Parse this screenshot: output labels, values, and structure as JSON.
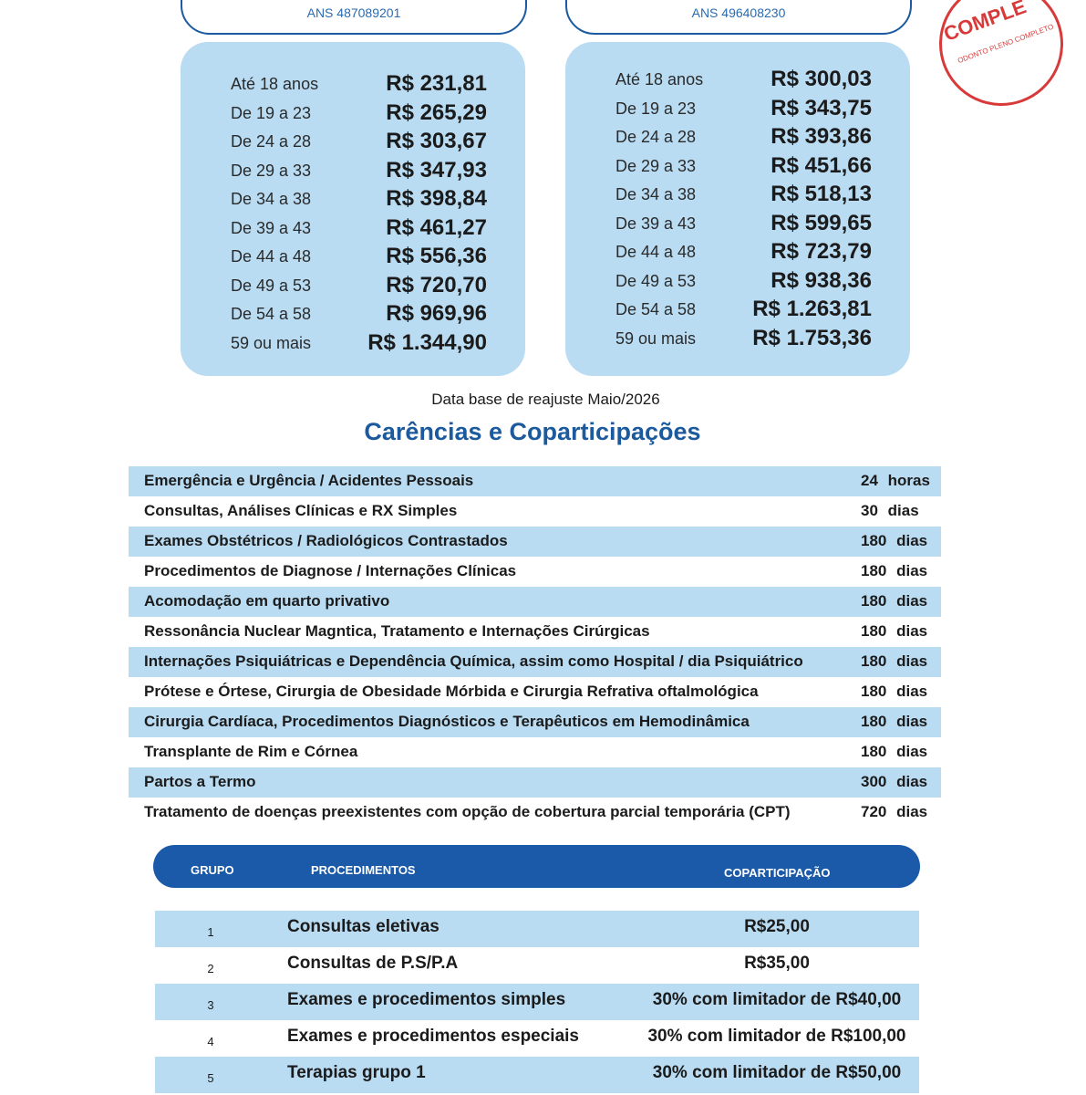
{
  "stamp": {
    "label": "COMPLE",
    "sub": "ODONTO PLENO COMPLETO"
  },
  "plans": [
    {
      "ans": "ANS 487089201",
      "prices": [
        [
          "Até 18 anos",
          "R$ 231,81"
        ],
        [
          "De 19 a 23",
          "R$ 265,29"
        ],
        [
          "De 24 a 28",
          "R$ 303,67"
        ],
        [
          "De 29 a 33",
          "R$ 347,93"
        ],
        [
          "De 34 a 38",
          "R$ 398,84"
        ],
        [
          "De 39 a 43",
          "R$ 461,27"
        ],
        [
          "De 44 a 48",
          "R$ 556,36"
        ],
        [
          "De 49 a 53",
          "R$ 720,70"
        ],
        [
          "De 54 a 58",
          "R$ 969,96"
        ],
        [
          "59 ou mais",
          "R$ 1.344,90"
        ]
      ]
    },
    {
      "ans": "ANS 496408230",
      "prices": [
        [
          "Até 18 anos",
          "R$ 300,03"
        ],
        [
          "De 19 a 23",
          "R$ 343,75"
        ],
        [
          "De 24 a 28",
          "R$ 393,86"
        ],
        [
          "De 29 a 33",
          "R$ 451,66"
        ],
        [
          "De 34 a 38",
          "R$ 518,13"
        ],
        [
          "De 39 a 43",
          "R$ 599,65"
        ],
        [
          "De 44 a 48",
          "R$ 723,79"
        ],
        [
          "De 49 a 53",
          "R$ 938,36"
        ],
        [
          "De 54 a 58",
          "R$ 1.263,81"
        ],
        [
          "59 ou mais",
          "R$ 1.753,36"
        ]
      ]
    }
  ],
  "note": "Data base de reajuste Maio/2026",
  "title": "Carências e Coparticipações",
  "carencias": [
    [
      "Emergência e Urgência / Acidentes Pessoais",
      "24 horas"
    ],
    [
      "Consultas, Análises Clínicas e RX Simples",
      "30 dias"
    ],
    [
      "Exames Obstétricos / Radiológicos Contrastados",
      "180 dias"
    ],
    [
      "Procedimentos de Diagnose / Internações Clínicas",
      "180 dias"
    ],
    [
      "Acomodação em quarto privativo",
      "180 dias"
    ],
    [
      "Ressonância Nuclear Magntica, Tratamento e Internações Cirúrgicas",
      "180 dias"
    ],
    [
      "Internações Psiquiátricas e Dependência Química, assim como Hospital / dia Psiquiátrico",
      "180 dias"
    ],
    [
      "Prótese e Órtese, Cirurgia de Obesidade Mórbida e Cirurgia Refrativa oftalmológica",
      "180 dias"
    ],
    [
      "Cirurgia Cardíaca, Procedimentos Diagnósticos e Terapêuticos em Hemodinâmica",
      "180 dias"
    ],
    [
      "Transplante de Rim e Córnea",
      "180 dias"
    ],
    [
      "Partos a Termo",
      "300 dias"
    ],
    [
      "Tratamento de doenças preexistentes com opção de cobertura parcial temporária (CPT)",
      "720 dias"
    ]
  ],
  "copart": {
    "header": [
      "GRUPO",
      "PROCEDIMENTOS",
      "COPARTICIPAÇÃO"
    ],
    "rows": [
      [
        "1",
        "Consultas eletivas",
        "R$25,00"
      ],
      [
        "2",
        "Consultas de P.S/P.A",
        "R$35,00"
      ],
      [
        "3",
        "Exames e procedimentos simples",
        "30% com limitador de R$40,00"
      ],
      [
        "4",
        "Exames e procedimentos especiais",
        "30% com limitador de R$100,00"
      ],
      [
        "5",
        "Terapias grupo 1",
        "30% com limitador de R$50,00"
      ]
    ]
  }
}
